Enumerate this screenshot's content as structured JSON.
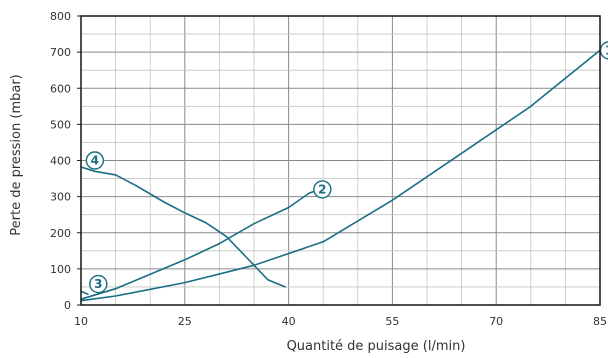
{
  "chart_data": {
    "type": "line",
    "xlabel": "Quantité de puisage (l/min)",
    "ylabel": "Perte de pression (mbar)",
    "xlim": [
      10,
      85
    ],
    "ylim": [
      0,
      800
    ],
    "x_ticks": [
      "10",
      "25",
      "40",
      "55",
      "70",
      "85"
    ],
    "y_ticks": [
      "0",
      "100",
      "200",
      "300",
      "400",
      "500",
      "600",
      "700",
      "800"
    ],
    "grid": true,
    "series": [
      {
        "name": "1",
        "points": [
          [
            10,
            12
          ],
          [
            15,
            25
          ],
          [
            25,
            62
          ],
          [
            35,
            110
          ],
          [
            45,
            175
          ],
          [
            55,
            290
          ],
          [
            65,
            420
          ],
          [
            75,
            550
          ],
          [
            85,
            705
          ]
        ]
      },
      {
        "name": "2",
        "points": [
          [
            10,
            16
          ],
          [
            15,
            45
          ],
          [
            20,
            85
          ],
          [
            25,
            125
          ],
          [
            30,
            170
          ],
          [
            35,
            225
          ],
          [
            40,
            270
          ],
          [
            43,
            310
          ],
          [
            44.5,
            320
          ]
        ]
      },
      {
        "name": "3",
        "points": [
          [
            10,
            38
          ],
          [
            11,
            30
          ]
        ]
      },
      {
        "name": "4",
        "points": [
          [
            10,
            382
          ],
          [
            12,
            370
          ],
          [
            15,
            360
          ],
          [
            18,
            330
          ],
          [
            22,
            285
          ],
          [
            25,
            255
          ],
          [
            28,
            228
          ],
          [
            31,
            190
          ],
          [
            34,
            130
          ],
          [
            37,
            70
          ],
          [
            39.5,
            50
          ]
        ]
      }
    ],
    "colors": {
      "line": "#1a6e83",
      "grid": "#999999",
      "axis": "#222222"
    }
  }
}
